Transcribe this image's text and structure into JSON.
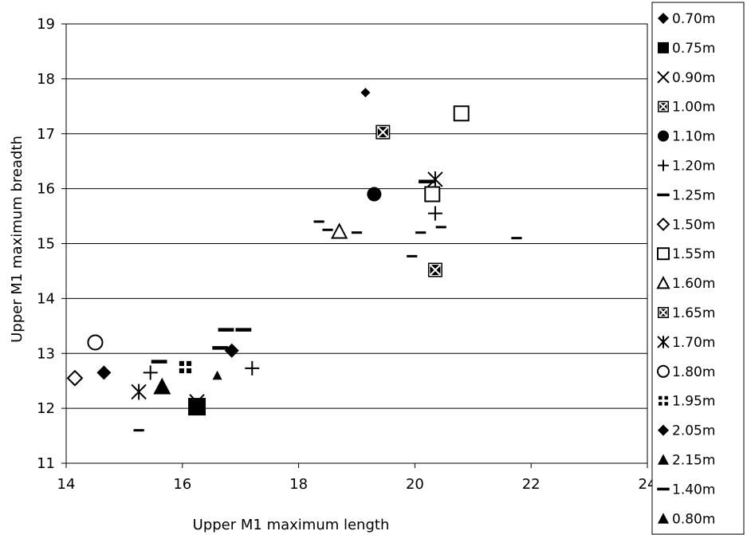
{
  "chart_data": {
    "type": "scatter",
    "title": "",
    "xlabel": "Upper M1 maximum length",
    "ylabel": "Upper M1 maximum breadth",
    "xlim": [
      14,
      24
    ],
    "ylim": [
      11,
      19
    ],
    "x_ticks": [
      "14",
      "16",
      "18",
      "20",
      "22",
      "24"
    ],
    "y_ticks": [
      "11",
      "12",
      "13",
      "14",
      "15",
      "16",
      "17",
      "18",
      "19"
    ],
    "grid": "horizontal",
    "legend_position": "right",
    "series": [
      {
        "name": "0.70m",
        "marker": "diamond",
        "size": "small",
        "points": [
          [
            19.15,
            17.75
          ]
        ]
      },
      {
        "name": "0.75m",
        "marker": "square",
        "size": "large",
        "points": [
          [
            16.25,
            12.03
          ]
        ]
      },
      {
        "name": "0.90m",
        "marker": "x",
        "size": "medium",
        "points": [
          [
            16.25,
            12.12
          ]
        ]
      },
      {
        "name": "1.00m",
        "marker": "square-x",
        "size": "medium",
        "points": [
          [
            20.35,
            14.52
          ]
        ]
      },
      {
        "name": "1.10m",
        "marker": "circle",
        "size": "medium",
        "points": [
          [
            19.3,
            15.9
          ]
        ]
      },
      {
        "name": "1.20m",
        "marker": "plus",
        "size": "medium",
        "points": [
          [
            15.45,
            12.65
          ],
          [
            17.2,
            12.73
          ],
          [
            20.35,
            15.55
          ]
        ]
      },
      {
        "name": "1.25m",
        "marker": "dash",
        "size": "small",
        "points": [
          [
            15.25,
            11.6
          ],
          [
            18.35,
            15.4
          ],
          [
            18.5,
            15.25
          ],
          [
            19.0,
            15.2
          ],
          [
            19.95,
            14.77
          ],
          [
            20.1,
            15.2
          ],
          [
            20.45,
            15.3
          ],
          [
            21.75,
            15.1
          ]
        ]
      },
      {
        "name": "1.50m",
        "marker": "diamond-open",
        "size": "medium",
        "points": [
          [
            14.15,
            12.55
          ]
        ]
      },
      {
        "name": "1.55m",
        "marker": "square-open",
        "size": "medium",
        "points": [
          [
            20.3,
            15.9
          ],
          [
            20.8,
            17.37
          ]
        ]
      },
      {
        "name": "1.60m",
        "marker": "triangle-open",
        "size": "medium",
        "points": [
          [
            18.7,
            15.22
          ]
        ]
      },
      {
        "name": "1.65m",
        "marker": "square-x",
        "size": "medium",
        "points": [
          [
            19.45,
            17.03
          ]
        ]
      },
      {
        "name": "1.70m",
        "marker": "asterisk",
        "size": "medium",
        "points": [
          [
            15.25,
            12.3
          ],
          [
            20.35,
            16.17
          ]
        ]
      },
      {
        "name": "1.80m",
        "marker": "circle-open",
        "size": "medium",
        "points": [
          [
            14.5,
            13.2
          ]
        ]
      },
      {
        "name": "1.95m",
        "marker": "quad-square",
        "size": "medium",
        "points": [
          [
            16.05,
            12.75
          ]
        ]
      },
      {
        "name": "2.05m",
        "marker": "diamond",
        "size": "medium",
        "points": [
          [
            14.65,
            12.65
          ],
          [
            16.85,
            13.05
          ]
        ]
      },
      {
        "name": "2.15m",
        "marker": "triangle",
        "size": "small",
        "points": [
          [
            16.6,
            12.6
          ]
        ]
      },
      {
        "name": "1.40m",
        "marker": "dash",
        "size": "medium",
        "points": [
          [
            15.6,
            12.85
          ],
          [
            16.65,
            13.1
          ],
          [
            16.75,
            13.43
          ],
          [
            17.05,
            13.43
          ],
          [
            20.2,
            16.13
          ]
        ]
      },
      {
        "name": "0.80m",
        "marker": "triangle",
        "size": "large",
        "points": [
          [
            15.65,
            12.4
          ]
        ]
      }
    ]
  }
}
